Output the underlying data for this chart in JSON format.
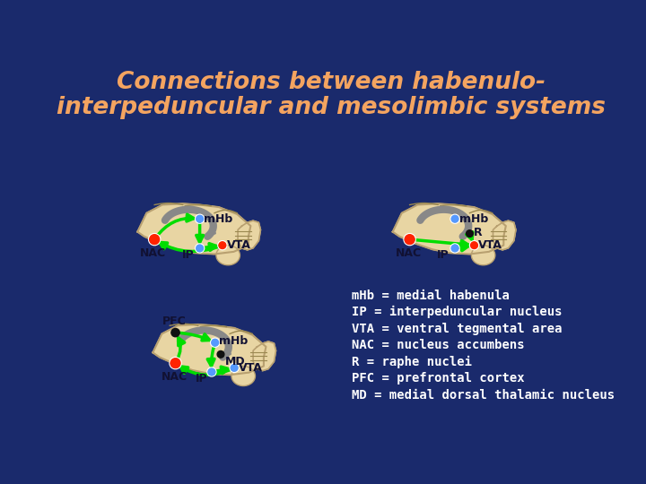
{
  "background_color": "#1a2a6c",
  "title_line1": "Connections between habenulo-",
  "title_line2": "interpeduncular and mesolimbic systems",
  "title_color": "#f4a460",
  "title_fontsize": 19,
  "brain_color": "#e8d5a3",
  "brain_edge_color": "#b8a070",
  "brain_fold_color": "#9a8850",
  "gray_arrow_color": "#888888",
  "green_arrow_color": "#00dd00",
  "node_red": "#ff2200",
  "node_blue": "#5599ff",
  "node_black": "#111111",
  "label_color": "#111133",
  "legend_text": [
    "mHb = medial habenula",
    "IP = interpeduncular nucleus",
    "VTA = ventral tegmental area",
    "NAC = nucleus accumbens",
    "R = raphe nuclei",
    "PFC = prefrontal cortex",
    "MD = medial dorsal thalamic nucleus"
  ],
  "legend_color": "#ffffff",
  "legend_fontsize": 10
}
